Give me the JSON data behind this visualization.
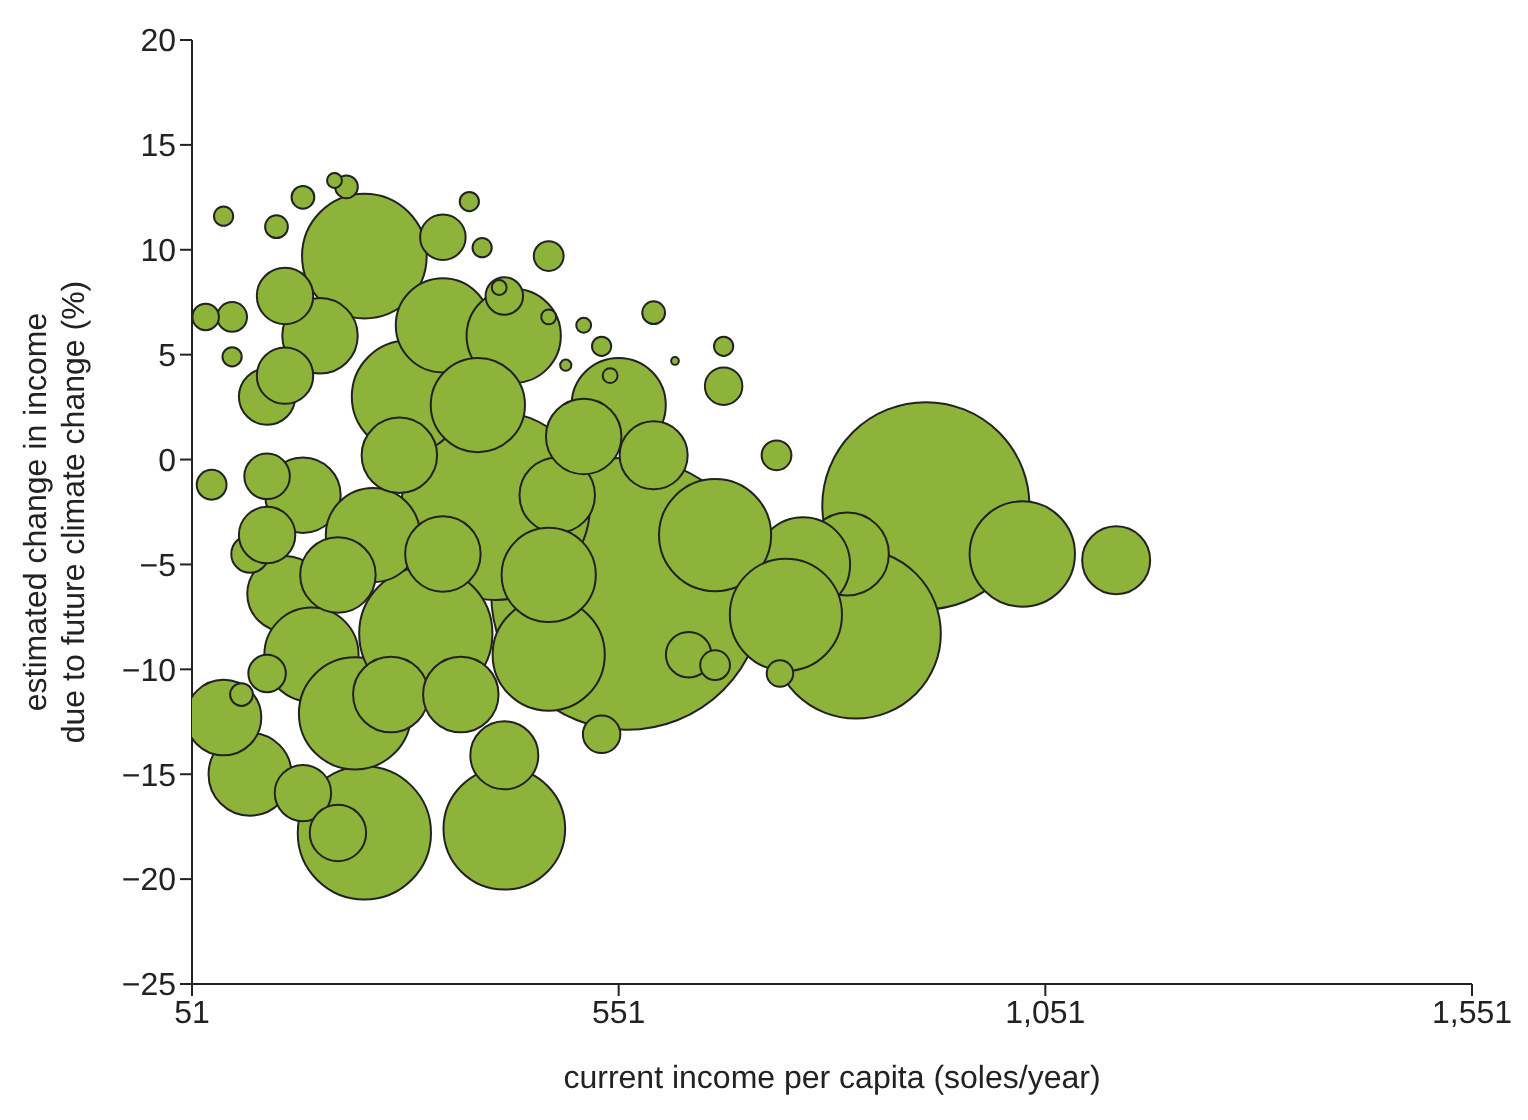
{
  "chart_data": {
    "type": "bubble",
    "xlabel": "current income per capita (soles/year)",
    "ylabel": "estimated change in income\ndue to future  climate change (%)",
    "xlim": [
      51,
      1551
    ],
    "xticks": [
      51,
      551,
      {
        "value": 1051,
        "label": "1,051"
      },
      {
        "value": 1551,
        "label": "1,551"
      }
    ],
    "ylim": [
      -25,
      20
    ],
    "yticks": [
      {
        "value": -25,
        "label": "−25"
      },
      {
        "value": -20,
        "label": "−20"
      },
      {
        "value": -15,
        "label": "−15"
      },
      {
        "value": -10,
        "label": "−10"
      },
      {
        "value": -5,
        "label": "−5"
      },
      0,
      5,
      10,
      15,
      20
    ],
    "grid": false,
    "legend": false,
    "series": [
      {
        "color": "#8db33a",
        "x": [
          561,
          911,
          829,
          253,
          407,
          417,
          253,
          119,
          88,
          1024,
          1134,
          819,
          767,
          551,
          664,
          747,
          304,
          345,
          181,
          160,
          191,
          242,
          325,
          469,
          345,
          428,
          201,
          139,
          160,
          98,
          74,
          139,
          119,
          139,
          181,
          222,
          284,
          479,
          592,
          510,
          386,
          469,
          633,
          736,
          740,
          664,
          417,
          469,
          376,
          391,
          411,
          469,
          510,
          531,
          489,
          541,
          617,
          592,
          232,
          218,
          88,
          98,
          67,
          109,
          263,
          294,
          222,
          366,
          417,
          531,
          345,
          674,
          150,
          181,
          674,
          139,
          160
        ],
        "values": [
          -6.4,
          -2.2,
          -8.3,
          9.7,
          -2.2,
          -17.6,
          -17.8,
          -15,
          -12.3,
          -4.5,
          -4.8,
          -4.5,
          -5,
          2.6,
          -3.6,
          -7.4,
          3,
          6.4,
          -1.7,
          -6.4,
          -9.3,
          -12.1,
          -8.3,
          -9.3,
          10.6,
          5.9,
          5.9,
          3,
          7.8,
          6.8,
          -1.2,
          -0.8,
          -4.5,
          -10.2,
          -15.9,
          -17.8,
          -11.2,
          -1.7,
          0.2,
          1.1,
          2.6,
          -5.5,
          -9.3,
          0.2,
          -10.2,
          -9.8,
          7.8,
          9.7,
          12.3,
          10.1,
          8.2,
          6.8,
          6.4,
          5.4,
          4.5,
          4,
          4.7,
          7,
          13,
          13.3,
          11.6,
          4.9,
          6.8,
          -11.2,
          -3.6,
          0.2,
          -5.5,
          -11.2,
          -14.1,
          -13.1,
          -4.5,
          5.4,
          11.1,
          12.5,
          3.5,
          -3.6,
          4
        ],
        "sizes": [
          1,
          0.58,
          0.39,
          0.21,
          0.48,
          0.2,
          0.24,
          0.093,
          0.077,
          0.15,
          0.0625,
          0.093,
          0.12,
          0.12,
          0.17,
          0.17,
          0.17,
          0.12,
          0.077,
          0.077,
          0.12,
          0.17,
          0.24,
          0.17,
          0.028,
          0.12,
          0.077,
          0.043,
          0.043,
          0.012,
          0.012,
          0.028,
          0.019,
          0.019,
          0.043,
          0.043,
          0.077,
          0.077,
          0.0625,
          0.077,
          0.12,
          0.12,
          0.028,
          0.012,
          0.0095,
          0.012,
          0.019,
          0.012,
          0.005,
          0.005,
          0.003,
          0.003,
          0.003,
          0.005,
          0.0017,
          0.003,
          0.0008,
          0.007,
          0.007,
          0.003,
          0.005,
          0.005,
          0.0095,
          0.007,
          0.12,
          0.077,
          0.077,
          0.077,
          0.0625,
          0.019,
          0.077,
          0.005,
          0.007,
          0.007,
          0.019,
          0.043,
          0.043
        ]
      }
    ]
  }
}
